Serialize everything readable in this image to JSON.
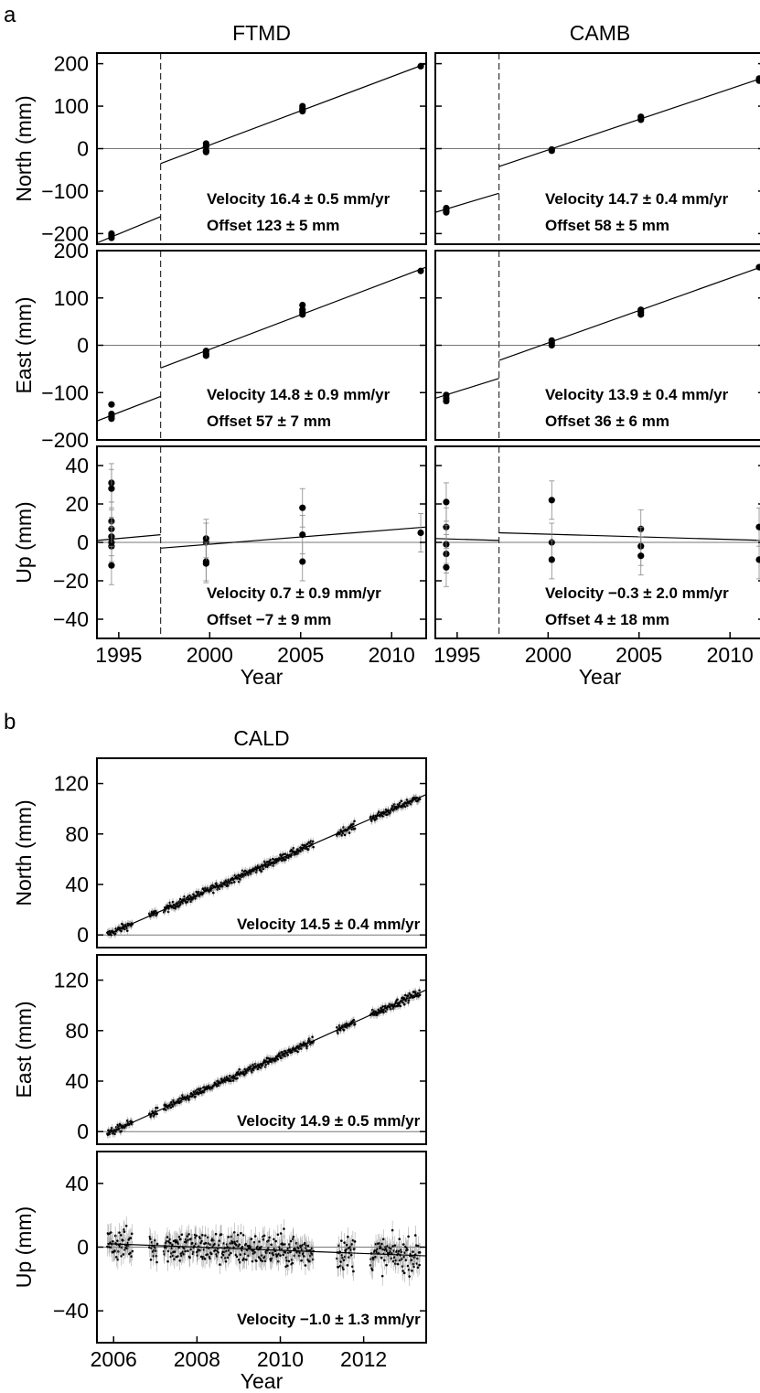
{
  "panel_letters": [
    "a",
    "b"
  ],
  "chart_data": [
    {
      "type": "scatter",
      "station": "FTMD",
      "component": "North",
      "title": "FTMD",
      "ylabel": "North (mm)",
      "xlabel": "",
      "xlim": [
        1993.8,
        2011.9
      ],
      "ylim": [
        -225,
        225
      ],
      "yticks": [
        "200",
        "100",
        "0",
        "−100",
        "−200"
      ],
      "xticks": [],
      "offset_epoch": 1997.3,
      "points": [
        [
          1994.6,
          -205
        ],
        [
          1994.6,
          -210
        ],
        [
          1994.6,
          -200
        ],
        [
          1999.8,
          12
        ],
        [
          1999.8,
          5
        ],
        [
          1999.8,
          -5
        ],
        [
          1999.8,
          -8
        ],
        [
          2005.1,
          100
        ],
        [
          2005.1,
          95
        ],
        [
          2005.1,
          90
        ],
        [
          2005.1,
          88
        ],
        [
          2011.6,
          194
        ]
      ],
      "fit_segments": [
        [
          [
            1993.8,
            -222
          ],
          [
            1997.3,
            -160
          ]
        ],
        [
          [
            1997.3,
            -35
          ],
          [
            2011.9,
            200
          ]
        ]
      ],
      "annotations": [
        "Velocity 16.4 ± 0.5 mm/yr",
        "Offset 123 ± 5 mm"
      ]
    },
    {
      "type": "scatter",
      "station": "CAMB",
      "component": "North",
      "title": "CAMB",
      "ylabel": "",
      "xlabel": "",
      "xlim": [
        1993.8,
        2011.9
      ],
      "ylim": [
        -225,
        225
      ],
      "yticks": [],
      "xticks": [],
      "offset_epoch": 1997.3,
      "points": [
        [
          1994.4,
          -140
        ],
        [
          1994.4,
          -145
        ],
        [
          1994.4,
          -150
        ],
        [
          2000.2,
          -2
        ],
        [
          2000.2,
          -5
        ],
        [
          2005.1,
          75
        ],
        [
          2005.1,
          70
        ],
        [
          2005.1,
          68
        ],
        [
          2011.6,
          165
        ],
        [
          2011.6,
          160
        ]
      ],
      "fit_segments": [
        [
          [
            1993.8,
            -150
          ],
          [
            1997.3,
            -105
          ]
        ],
        [
          [
            1997.3,
            -42
          ],
          [
            2011.9,
            168
          ]
        ]
      ],
      "annotations": [
        "Velocity 14.7 ± 0.4 mm/yr",
        "Offset 58 ± 5 mm"
      ]
    },
    {
      "type": "scatter",
      "station": "FTMD",
      "component": "East",
      "title": "",
      "ylabel": "East (mm)",
      "xlabel": "",
      "xlim": [
        1993.8,
        2011.9
      ],
      "ylim": [
        -200,
        200
      ],
      "yticks": [
        "200",
        "100",
        "0",
        "−100",
        "−200"
      ],
      "xticks": [],
      "offset_epoch": 1997.3,
      "points": [
        [
          1994.6,
          -125
        ],
        [
          1994.6,
          -145
        ],
        [
          1994.6,
          -150
        ],
        [
          1994.6,
          -155
        ],
        [
          1999.8,
          -12
        ],
        [
          1999.8,
          -18
        ],
        [
          1999.8,
          -22
        ],
        [
          2005.1,
          85
        ],
        [
          2005.1,
          75
        ],
        [
          2005.1,
          70
        ],
        [
          2005.1,
          65
        ],
        [
          2011.6,
          157
        ]
      ],
      "fit_segments": [
        [
          [
            1993.8,
            -160
          ],
          [
            1997.3,
            -108
          ]
        ],
        [
          [
            1997.3,
            -48
          ],
          [
            2011.9,
            165
          ]
        ]
      ],
      "annotations": [
        "Velocity 14.8 ± 0.9 mm/yr",
        "Offset 57 ± 7 mm"
      ]
    },
    {
      "type": "scatter",
      "station": "CAMB",
      "component": "East",
      "title": "",
      "ylabel": "",
      "xlabel": "",
      "xlim": [
        1993.8,
        2011.9
      ],
      "ylim": [
        -200,
        200
      ],
      "yticks": [],
      "xticks": [],
      "offset_epoch": 1997.3,
      "points": [
        [
          1994.4,
          -105
        ],
        [
          1994.4,
          -112
        ],
        [
          1994.4,
          -118
        ],
        [
          2000.2,
          10
        ],
        [
          2000.2,
          5
        ],
        [
          2000.2,
          0
        ],
        [
          2005.1,
          75
        ],
        [
          2005.1,
          70
        ],
        [
          2005.1,
          65
        ],
        [
          2011.6,
          165
        ]
      ],
      "fit_segments": [
        [
          [
            1993.8,
            -112
          ],
          [
            1997.3,
            -70
          ]
        ],
        [
          [
            1997.3,
            -32
          ],
          [
            2011.9,
            168
          ]
        ]
      ],
      "annotations": [
        "Velocity 13.9 ± 0.4 mm/yr",
        "Offset 36 ± 6 mm"
      ]
    },
    {
      "type": "scatter",
      "station": "FTMD",
      "component": "Up",
      "title": "",
      "ylabel": "Up (mm)",
      "xlabel": "Year",
      "xlim": [
        1993.8,
        2011.9
      ],
      "ylim": [
        -50,
        50
      ],
      "yticks": [
        "40",
        "20",
        "0",
        "−20",
        "−40"
      ],
      "xticks": [
        "1995",
        "2000",
        "2005",
        "2010"
      ],
      "offset_epoch": 1997.3,
      "points": [
        [
          1994.6,
          31
        ],
        [
          1994.6,
          28
        ],
        [
          1994.6,
          11
        ],
        [
          1994.6,
          7
        ],
        [
          1994.6,
          3
        ],
        [
          1994.6,
          0
        ],
        [
          1994.6,
          -2
        ],
        [
          1994.6,
          -12
        ],
        [
          1999.8,
          2
        ],
        [
          1999.8,
          0
        ],
        [
          1999.8,
          -10
        ],
        [
          1999.8,
          -11
        ],
        [
          2005.1,
          18
        ],
        [
          2005.1,
          4
        ],
        [
          2005.1,
          -10
        ],
        [
          2011.6,
          5
        ]
      ],
      "fit_segments": [
        [
          [
            1993.8,
            1
          ],
          [
            1997.3,
            4
          ]
        ],
        [
          [
            1997.3,
            -3
          ],
          [
            2011.9,
            8
          ]
        ]
      ],
      "annotations": [
        "Velocity 0.7 ± 0.9 mm/yr",
        "Offset −7 ± 9 mm"
      ]
    },
    {
      "type": "scatter",
      "station": "CAMB",
      "component": "Up",
      "title": "",
      "ylabel": "",
      "xlabel": "Year",
      "xlim": [
        1993.8,
        2011.9
      ],
      "ylim": [
        -50,
        50
      ],
      "yticks": [],
      "xticks": [
        "1995",
        "2000",
        "2005",
        "2010"
      ],
      "offset_epoch": 1997.3,
      "points": [
        [
          1994.4,
          21
        ],
        [
          1994.4,
          8
        ],
        [
          1994.4,
          -1
        ],
        [
          1994.4,
          -6
        ],
        [
          1994.4,
          -13
        ],
        [
          2000.2,
          22
        ],
        [
          2000.2,
          0
        ],
        [
          2000.2,
          -9
        ],
        [
          2005.1,
          7
        ],
        [
          2005.1,
          -2
        ],
        [
          2005.1,
          -7
        ],
        [
          2011.6,
          8
        ],
        [
          2011.6,
          -9
        ]
      ],
      "fit_segments": [
        [
          [
            1993.8,
            2
          ],
          [
            1997.3,
            1
          ]
        ],
        [
          [
            1997.3,
            5
          ],
          [
            2011.9,
            1
          ]
        ]
      ],
      "annotations": [
        "Velocity −0.3 ± 2.0 mm/yr",
        "Offset 4 ± 18 mm"
      ]
    },
    {
      "type": "scatter",
      "station": "CALD",
      "component": "North",
      "title": "CALD",
      "ylabel": "North (mm)",
      "xlabel": "",
      "xlim": [
        2005.6,
        2013.5
      ],
      "ylim": [
        -10,
        140
      ],
      "yticks": [
        "120",
        "80",
        "40",
        "0"
      ],
      "xticks": [],
      "trend": {
        "x0": 2006.0,
        "y0": 2.5,
        "rate": 14.5
      },
      "annotations": [
        "Velocity 14.5 ± 0.4 mm/yr"
      ]
    },
    {
      "type": "scatter",
      "station": "CALD",
      "component": "East",
      "title": "",
      "ylabel": "East (mm)",
      "xlabel": "",
      "xlim": [
        2005.6,
        2013.5
      ],
      "ylim": [
        -10,
        140
      ],
      "yticks": [
        "120",
        "80",
        "40",
        "0"
      ],
      "xticks": [],
      "trend": {
        "x0": 2006.0,
        "y0": 0.5,
        "rate": 14.9
      },
      "annotations": [
        "Velocity 14.9 ± 0.5 mm/yr"
      ]
    },
    {
      "type": "scatter",
      "station": "CALD",
      "component": "Up",
      "title": "",
      "ylabel": "Up (mm)",
      "xlabel": "Year",
      "xlim": [
        2005.6,
        2013.5
      ],
      "ylim": [
        -60,
        60
      ],
      "yticks": [
        "40",
        "0",
        "−40"
      ],
      "xticks": [
        "2006",
        "2008",
        "2010",
        "2012"
      ],
      "trend": {
        "x0": 2006.0,
        "y0": 2,
        "rate": -1.0
      },
      "annotations": [
        "Velocity −1.0 ± 1.3 mm/yr"
      ]
    }
  ]
}
